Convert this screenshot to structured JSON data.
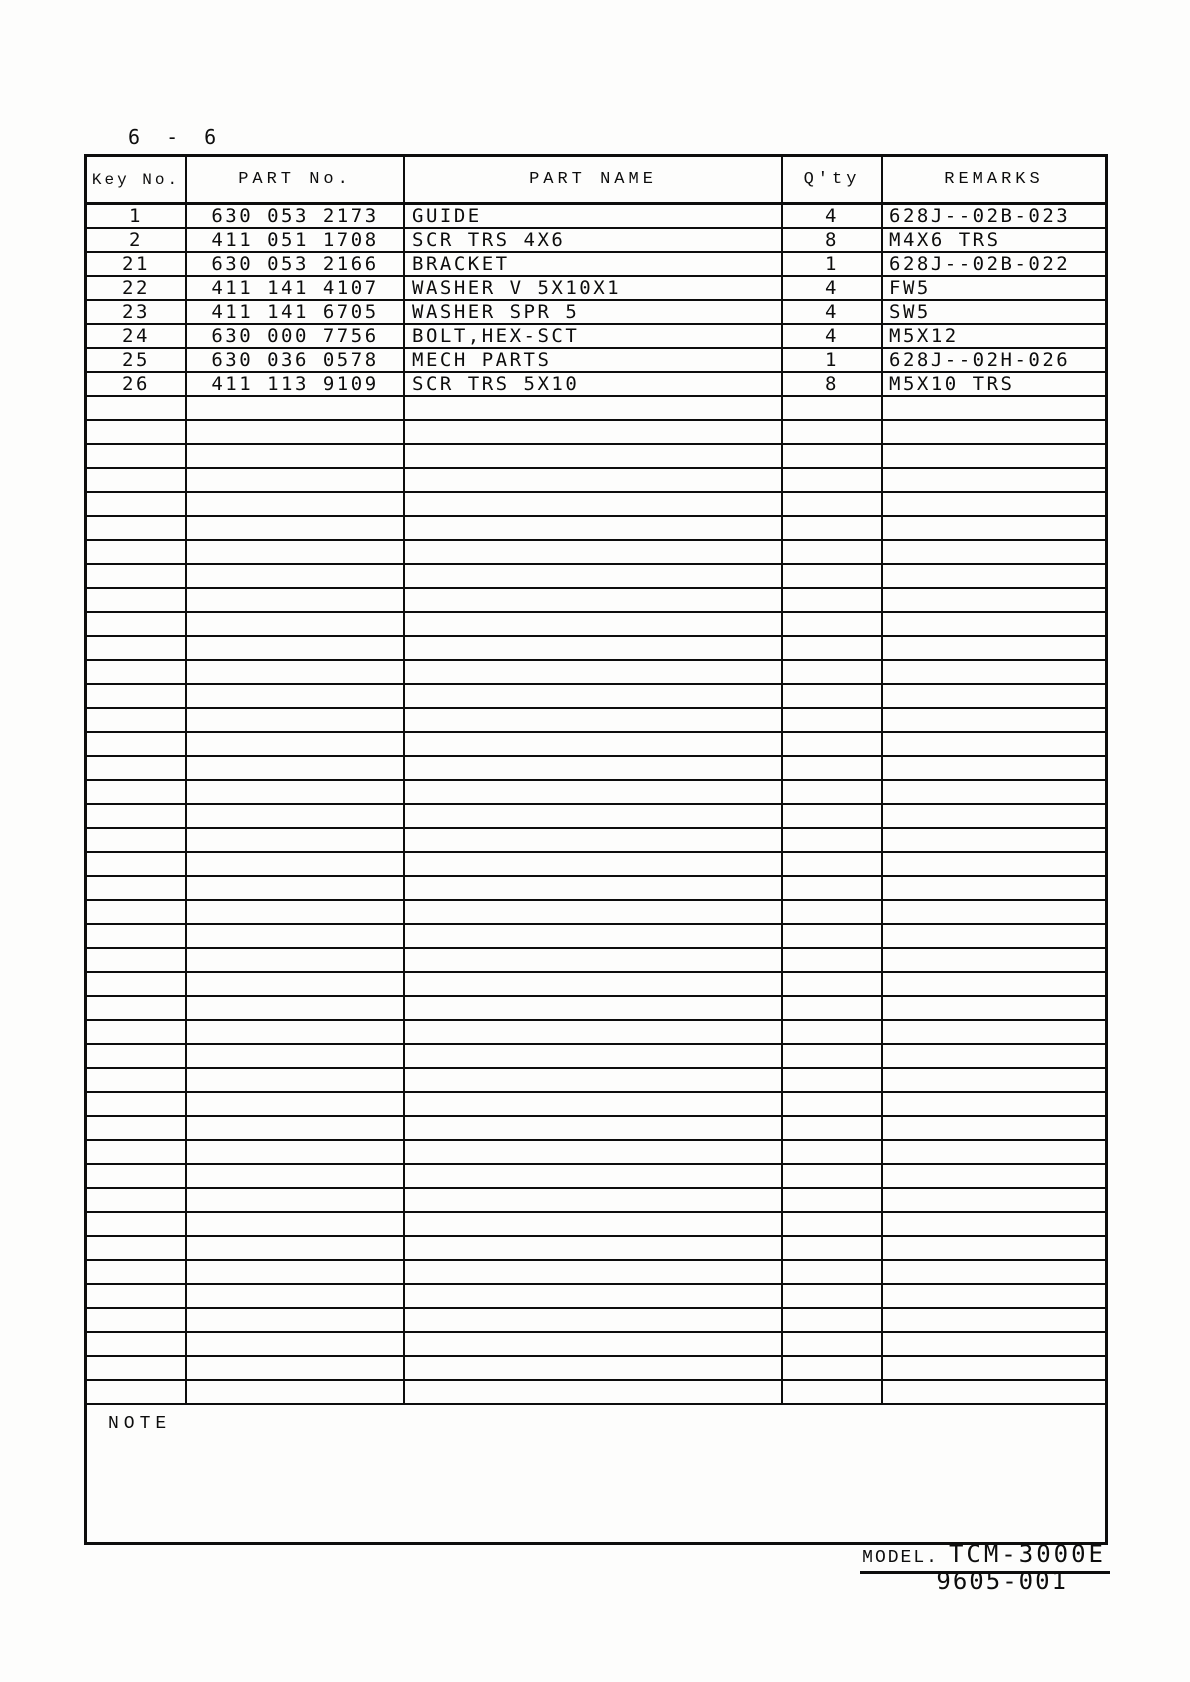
{
  "page": {
    "label": "6 - 6"
  },
  "table": {
    "headers": [
      "Key No.",
      "PART No.",
      "PART NAME",
      "Q'ty",
      "REMARKS"
    ],
    "rows": [
      {
        "key_no": "1",
        "part_no": "630 053 2173",
        "part_name": "GUIDE",
        "qty": "4",
        "remarks": "628J--02B-023"
      },
      {
        "key_no": "2",
        "part_no": "411 051 1708",
        "part_name": "SCR TRS 4X6",
        "qty": "8",
        "remarks": "M4X6 TRS"
      },
      {
        "key_no": "21",
        "part_no": "630 053 2166",
        "part_name": "BRACKET",
        "qty": "1",
        "remarks": "628J--02B-022"
      },
      {
        "key_no": "22",
        "part_no": "411 141 4107",
        "part_name": "WASHER V 5X10X1",
        "qty": "4",
        "remarks": "FW5"
      },
      {
        "key_no": "23",
        "part_no": "411 141 6705",
        "part_name": "WASHER SPR 5",
        "qty": "4",
        "remarks": "SW5"
      },
      {
        "key_no": "24",
        "part_no": "630 000 7756",
        "part_name": "BOLT,HEX-SCT",
        "qty": "4",
        "remarks": "M5X12"
      },
      {
        "key_no": "25",
        "part_no": "630 036 0578",
        "part_name": "MECH PARTS",
        "qty": "1",
        "remarks": "628J--02H-026"
      },
      {
        "key_no": "26",
        "part_no": "411 113 9109",
        "part_name": "SCR TRS 5X10",
        "qty": "8",
        "remarks": "M5X10 TRS"
      }
    ],
    "empty_row_count": 42,
    "note_label": "NOTE"
  },
  "footer": {
    "model_label": "MODEL.",
    "model_value": "TCM-3000E",
    "doc_number": "9605-001"
  }
}
